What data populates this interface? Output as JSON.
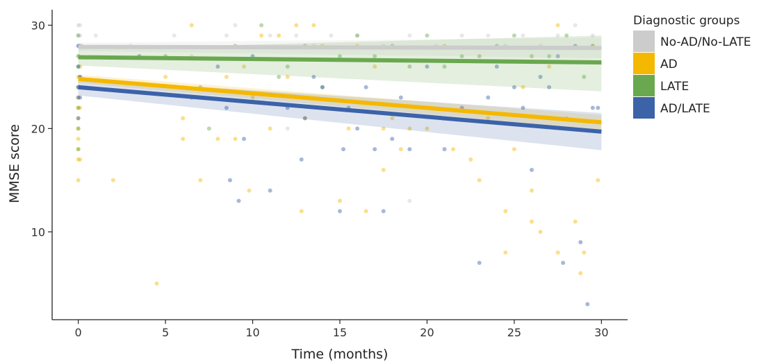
{
  "chart_data": {
    "type": "scatter",
    "xlabel": "Time (months)",
    "ylabel": "MMSE score",
    "xlim": [
      -1.5,
      31.5
    ],
    "ylim": [
      1.5,
      31.5
    ],
    "xticks": [
      0,
      5,
      10,
      15,
      20,
      25,
      30
    ],
    "yticks": [
      10,
      20,
      30
    ],
    "grid": false,
    "legend": {
      "title": "Diagnostic groups",
      "placement": "right"
    },
    "series": [
      {
        "name": "No-AD/No-LATE",
        "color": "#cccccc",
        "trend": {
          "x": [
            0,
            30
          ],
          "y": [
            27.9,
            27.8
          ],
          "ci_low": [
            27.5,
            26.8
          ],
          "ci_high": [
            28.3,
            28.8
          ]
        },
        "points": [
          [
            0,
            30
          ],
          [
            0,
            29
          ],
          [
            0,
            28
          ],
          [
            0,
            27
          ],
          [
            0.1,
            30
          ],
          [
            0.1,
            29
          ],
          [
            0.2,
            28
          ],
          [
            1,
            29
          ],
          [
            3,
            28
          ],
          [
            5.5,
            29
          ],
          [
            6.5,
            27
          ],
          [
            8.5,
            29
          ],
          [
            9,
            30
          ],
          [
            11,
            29
          ],
          [
            12.5,
            29
          ],
          [
            13.5,
            28
          ],
          [
            14.5,
            29
          ],
          [
            16,
            29
          ],
          [
            17.5,
            28
          ],
          [
            19,
            29
          ],
          [
            20.5,
            28
          ],
          [
            22,
            29
          ],
          [
            23.5,
            29
          ],
          [
            24.5,
            28
          ],
          [
            25.5,
            29
          ],
          [
            26.5,
            28
          ],
          [
            27.5,
            29
          ],
          [
            28.5,
            30
          ],
          [
            29.5,
            29
          ],
          [
            19,
            13
          ],
          [
            12,
            20
          ],
          [
            6,
            24
          ]
        ]
      },
      {
        "name": "AD",
        "color": "#f5b800",
        "trend": {
          "x": [
            0,
            30
          ],
          "y": [
            24.8,
            20.6
          ],
          "ci_low": [
            24.4,
            19.9
          ],
          "ci_high": [
            25.2,
            21.3
          ]
        },
        "points": [
          [
            0,
            25
          ],
          [
            0,
            24
          ],
          [
            0,
            23
          ],
          [
            0,
            22
          ],
          [
            0,
            21
          ],
          [
            0,
            20
          ],
          [
            0,
            19
          ],
          [
            0,
            18
          ],
          [
            0,
            17
          ],
          [
            0,
            15
          ],
          [
            0.1,
            26
          ],
          [
            0.1,
            24
          ],
          [
            0.1,
            22
          ],
          [
            0.1,
            17
          ],
          [
            2,
            15
          ],
          [
            4.5,
            5
          ],
          [
            5,
            25
          ],
          [
            6,
            21
          ],
          [
            6,
            19
          ],
          [
            6.5,
            30
          ],
          [
            7,
            15
          ],
          [
            8,
            19
          ],
          [
            8.5,
            25
          ],
          [
            9,
            19
          ],
          [
            9.5,
            26
          ],
          [
            9.8,
            14
          ],
          [
            10,
            23
          ],
          [
            10.5,
            29
          ],
          [
            11,
            20
          ],
          [
            11.5,
            29
          ],
          [
            12,
            25
          ],
          [
            12.5,
            30
          ],
          [
            12.8,
            12
          ],
          [
            13,
            21
          ],
          [
            13.5,
            30
          ],
          [
            14,
            28
          ],
          [
            15,
            13
          ],
          [
            15.5,
            20
          ],
          [
            16,
            28
          ],
          [
            16.5,
            12
          ],
          [
            17,
            26
          ],
          [
            17.5,
            20
          ],
          [
            17.5,
            16
          ],
          [
            18,
            21
          ],
          [
            18.5,
            18
          ],
          [
            19,
            20
          ],
          [
            20,
            20
          ],
          [
            21,
            28
          ],
          [
            21.5,
            18
          ],
          [
            22.5,
            17
          ],
          [
            23,
            15
          ],
          [
            23.5,
            21
          ],
          [
            24.5,
            12
          ],
          [
            24.5,
            8
          ],
          [
            25,
            18
          ],
          [
            25.5,
            24
          ],
          [
            26,
            14
          ],
          [
            26,
            11
          ],
          [
            26.5,
            10
          ],
          [
            27,
            26
          ],
          [
            27.5,
            30
          ],
          [
            27.5,
            8
          ],
          [
            28,
            21
          ],
          [
            28.5,
            11
          ],
          [
            28.8,
            6
          ],
          [
            29,
            8
          ],
          [
            29.5,
            28
          ],
          [
            29.8,
            15
          ]
        ]
      },
      {
        "name": "LATE",
        "color": "#6aa84f",
        "trend": {
          "x": [
            0,
            30
          ],
          "y": [
            26.9,
            26.4
          ],
          "ci_low": [
            26.1,
            23.6
          ],
          "ci_high": [
            27.7,
            29.0
          ]
        },
        "points": [
          [
            0,
            29
          ],
          [
            0,
            27
          ],
          [
            0,
            26
          ],
          [
            0,
            24
          ],
          [
            0,
            22
          ],
          [
            0,
            20
          ],
          [
            0,
            18
          ],
          [
            0.1,
            28
          ],
          [
            0.1,
            25
          ],
          [
            5,
            27
          ],
          [
            7,
            24
          ],
          [
            7.5,
            20
          ],
          [
            9,
            28
          ],
          [
            10.5,
            30
          ],
          [
            11.5,
            25
          ],
          [
            12,
            26
          ],
          [
            13,
            28
          ],
          [
            14,
            24
          ],
          [
            15,
            27
          ],
          [
            16,
            29
          ],
          [
            17,
            27
          ],
          [
            18,
            28
          ],
          [
            19,
            26
          ],
          [
            20,
            29
          ],
          [
            21,
            26
          ],
          [
            22,
            27
          ],
          [
            23,
            27
          ],
          [
            24,
            28
          ],
          [
            25,
            29
          ],
          [
            26,
            27
          ],
          [
            27,
            27
          ],
          [
            28,
            29
          ],
          [
            29,
            25
          ],
          [
            29.5,
            28
          ]
        ]
      },
      {
        "name": "AD/LATE",
        "color": "#3c62a8",
        "trend": {
          "x": [
            0,
            30
          ],
          "y": [
            24.0,
            19.7
          ],
          "ci_low": [
            23.2,
            17.9
          ],
          "ci_high": [
            24.8,
            21.5
          ]
        },
        "points": [
          [
            0,
            28
          ],
          [
            0,
            26
          ],
          [
            0,
            24
          ],
          [
            0,
            23
          ],
          [
            0,
            21
          ],
          [
            0.1,
            25
          ],
          [
            0.1,
            23
          ],
          [
            3.5,
            27
          ],
          [
            6.5,
            23
          ],
          [
            8,
            26
          ],
          [
            8.5,
            22
          ],
          [
            8.7,
            15
          ],
          [
            9.2,
            13
          ],
          [
            9.5,
            19
          ],
          [
            10,
            27
          ],
          [
            11,
            14
          ],
          [
            12,
            22
          ],
          [
            12.8,
            17
          ],
          [
            13,
            21
          ],
          [
            13.5,
            25
          ],
          [
            14,
            24
          ],
          [
            15,
            12
          ],
          [
            15.2,
            18
          ],
          [
            15.5,
            22
          ],
          [
            16,
            20
          ],
          [
            16.5,
            24
          ],
          [
            17,
            18
          ],
          [
            17.5,
            12
          ],
          [
            18,
            19
          ],
          [
            18.5,
            23
          ],
          [
            19,
            18
          ],
          [
            20,
            26
          ],
          [
            21,
            18
          ],
          [
            22,
            22
          ],
          [
            23,
            7
          ],
          [
            23.5,
            23
          ],
          [
            24,
            26
          ],
          [
            25,
            24
          ],
          [
            25.5,
            22
          ],
          [
            26,
            16
          ],
          [
            26.5,
            25
          ],
          [
            27,
            24
          ],
          [
            27.5,
            27
          ],
          [
            27.8,
            7
          ],
          [
            28.5,
            28
          ],
          [
            28.8,
            9
          ],
          [
            29.2,
            3
          ],
          [
            29.5,
            22
          ],
          [
            29.8,
            22
          ]
        ]
      }
    ]
  }
}
